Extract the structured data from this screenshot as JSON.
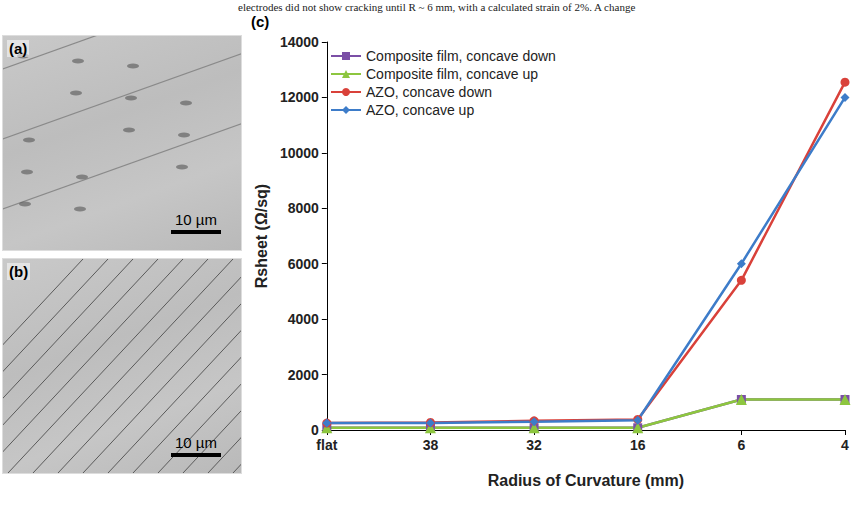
{
  "caption": "electrodes did not show cracking until R ~ 6 mm, with a calculated strain of 2%. A change",
  "panels": [
    {
      "label": "(a)",
      "scale_bar": "10 µm"
    },
    {
      "label": "(b)",
      "scale_bar": "10 µm"
    }
  ],
  "chart_data": {
    "type": "line",
    "annotations": [
      "(c)"
    ],
    "x_label": "Radius of Curvature (mm)",
    "y_label": "Rsheet (Ω/sq)",
    "categories": [
      "flat",
      "38",
      "32",
      "16",
      "6",
      "4"
    ],
    "series": [
      {
        "name": "Composite film, concave down",
        "color": "#7b4fa6",
        "marker": "square",
        "line_style": "solid",
        "values": [
          80,
          80,
          80,
          80,
          1100,
          1100
        ]
      },
      {
        "name": "Composite film, concave up",
        "color": "#8dc63f",
        "marker": "triangle",
        "line_style": "solid",
        "values": [
          80,
          80,
          80,
          80,
          1100,
          1100
        ]
      },
      {
        "name": "AZO, concave down",
        "color": "#d9413a",
        "marker": "circle",
        "line_style": "solid",
        "values": [
          250,
          270,
          330,
          380,
          5400,
          12550
        ]
      },
      {
        "name": "AZO, concave up",
        "color": "#3d7cc9",
        "marker": "diamond",
        "line_style": "solid",
        "values": [
          250,
          250,
          300,
          350,
          6000,
          12000
        ]
      }
    ],
    "ylim": [
      0,
      14000
    ],
    "yticks": [
      0,
      2000,
      4000,
      6000,
      8000,
      10000,
      12000,
      14000
    ],
    "grid": false,
    "legend": "top-left"
  }
}
